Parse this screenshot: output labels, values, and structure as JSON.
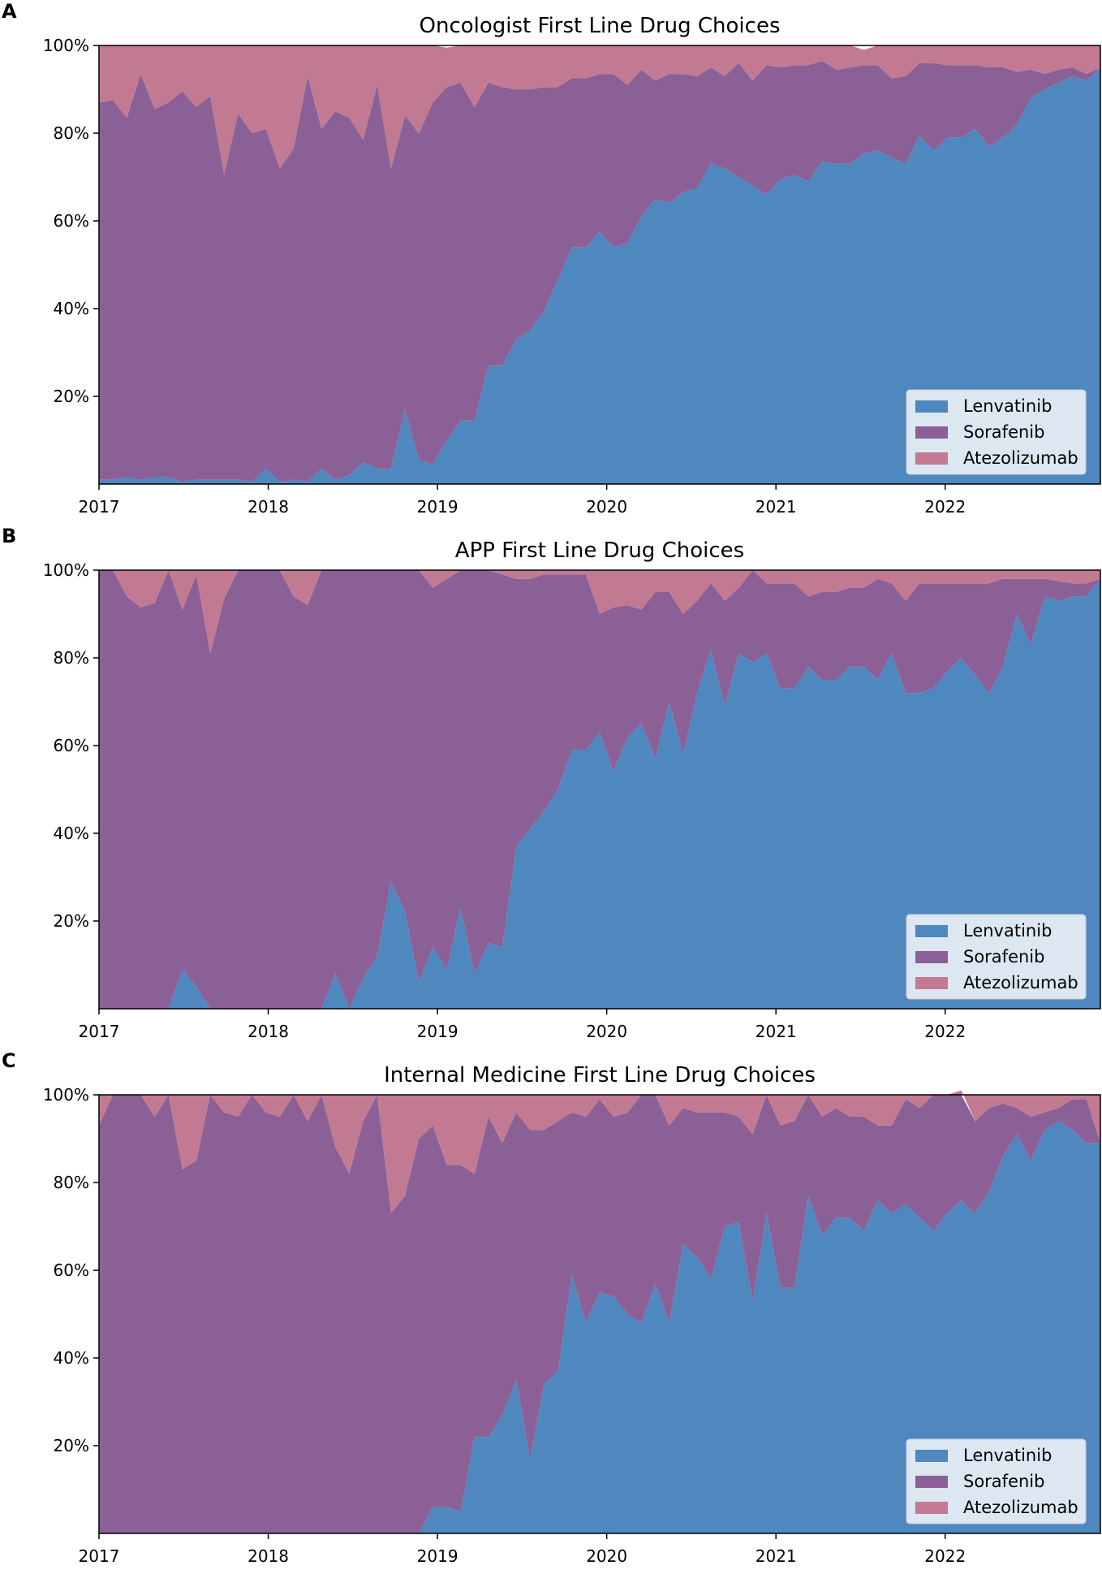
{
  "figure": {
    "colors": {
      "Lenvatinib": "#4f87bf",
      "Sorafenib": "#8b6097",
      "Atezolizumab": "#c27a92"
    },
    "legend_position": "lower-right"
  },
  "chart_data": [
    {
      "type": "area",
      "stacked": true,
      "panel_letter": "A",
      "title": "Oncologist First Line Drug Choices",
      "xlabel": "",
      "ylabel": "",
      "x_ticks": [
        "2017",
        "2018",
        "2019",
        "2020",
        "2021",
        "2022"
      ],
      "y_ticks": [
        "20%",
        "40%",
        "60%",
        "80%",
        "100%"
      ],
      "ylim": [
        0,
        100
      ],
      "x_start": 2017.0,
      "x_end": 2022.917,
      "legend": [
        "Lenvatinib",
        "Sorafenib",
        "Atezolizumab"
      ],
      "series": [
        {
          "name": "Lenvatinib",
          "values": [
            1,
            1,
            1.5,
            1,
            1.5,
            1.5,
            0.5,
            1,
            1,
            1,
            1,
            0.5,
            3.5,
            0.5,
            1,
            0.5,
            3.5,
            1,
            2,
            5,
            3.5,
            3.5,
            17,
            5.5,
            4.5,
            10,
            14.5,
            14.5,
            27,
            27,
            33,
            35,
            39.5,
            46.5,
            54,
            54,
            57.5,
            54,
            55,
            61,
            65,
            64,
            66.5,
            67.5,
            73,
            72,
            70,
            68,
            66,
            69.5,
            70.5,
            69,
            73.5,
            73,
            73,
            75.5,
            76,
            74.5,
            73,
            79.5,
            76,
            79,
            79,
            81,
            77,
            79,
            82,
            88,
            90,
            91.5,
            93,
            92,
            95
          ]
        },
        {
          "name": "Sorafenib",
          "values": [
            86,
            86.5,
            82,
            92.5,
            84,
            85.5,
            89,
            85,
            87.5,
            69.5,
            83.5,
            79.5,
            77.5,
            71.5,
            75.5,
            92.5,
            77.5,
            84,
            81.5,
            73.5,
            87.5,
            68.5,
            67,
            74.5,
            82.5,
            80.5,
            77,
            71.5,
            64.5,
            63.5,
            57,
            55,
            51,
            44,
            38.5,
            38.5,
            36,
            39.5,
            36,
            33.5,
            27,
            29.5,
            27,
            25.5,
            22,
            21,
            26,
            24,
            29.5,
            25.5,
            25,
            26.5,
            23,
            21.5,
            22,
            20,
            19.5,
            18,
            20,
            16.5,
            20,
            16.5,
            16.5,
            14.5,
            18,
            16,
            12,
            6.5,
            3.5,
            3,
            2,
            1.5,
            0
          ]
        },
        {
          "name": "Atezolizumab",
          "values": [
            13,
            12.5,
            16.5,
            6.5,
            14.5,
            13,
            10.5,
            14,
            11.5,
            29.5,
            15.5,
            20,
            19,
            28,
            23.5,
            7,
            19,
            15,
            16.5,
            21.5,
            9,
            28,
            16,
            20,
            13,
            9,
            8.5,
            14,
            8.5,
            9.5,
            10,
            10,
            9.5,
            9.5,
            7.5,
            7.5,
            6.5,
            6.5,
            9,
            5.5,
            8,
            6.5,
            6.5,
            7,
            5,
            7,
            4,
            8,
            4.5,
            5,
            4.5,
            4.5,
            3.5,
            5.5,
            5,
            3.5,
            4.5,
            7.5,
            7,
            4,
            4,
            4.5,
            4.5,
            4.5,
            5,
            5,
            6,
            5.5,
            6.5,
            6,
            5,
            6.5,
            5
          ]
        }
      ]
    },
    {
      "type": "area",
      "stacked": true,
      "panel_letter": "B",
      "title": "APP First Line Drug Choices",
      "xlabel": "",
      "ylabel": "",
      "x_ticks": [
        "2017",
        "2018",
        "2019",
        "2020",
        "2021",
        "2022"
      ],
      "y_ticks": [
        "20%",
        "40%",
        "60%",
        "80%",
        "100%"
      ],
      "ylim": [
        0,
        100
      ],
      "x_start": 2017.0,
      "x_end": 2022.917,
      "legend": [
        "Lenvatinib",
        "Sorafenib",
        "Atezolizumab"
      ],
      "series": [
        {
          "name": "Lenvatinib",
          "values": [
            0,
            0,
            0,
            0,
            0,
            0,
            9,
            5,
            0,
            0,
            0,
            0,
            0,
            0,
            0,
            0,
            0,
            8,
            0,
            7,
            12,
            29,
            22,
            6,
            14,
            9,
            23,
            8,
            15,
            14,
            37,
            41,
            45,
            50,
            59,
            59,
            63,
            54,
            62,
            65,
            57,
            70,
            58,
            72,
            82,
            69,
            81,
            79,
            81,
            73,
            73,
            78,
            75,
            75,
            78,
            78,
            75,
            81,
            72,
            72,
            73,
            77,
            80,
            76,
            72,
            78,
            90,
            83,
            94,
            93,
            94,
            94,
            98
          ]
        },
        {
          "name": "Sorafenib",
          "values": [
            100,
            100,
            94,
            91.5,
            92.5,
            100,
            82,
            94,
            81,
            93.5,
            100,
            100,
            100,
            100,
            94,
            92,
            100,
            92,
            100,
            93,
            88,
            71,
            78,
            94,
            82,
            89,
            77,
            92,
            85,
            85,
            61,
            57,
            54,
            49,
            40,
            40,
            27,
            37.5,
            30,
            26,
            38,
            25,
            32,
            21,
            15,
            24,
            15,
            21,
            16,
            24,
            24,
            16,
            20,
            20,
            18,
            18,
            23,
            16,
            21,
            25,
            24,
            20,
            17,
            21,
            25,
            20,
            8,
            15,
            4,
            4.5,
            3,
            3,
            0
          ]
        },
        {
          "name": "Atezolizumab",
          "values": [
            0,
            0,
            6,
            8.5,
            7.5,
            0,
            9,
            1,
            19,
            6.5,
            0,
            0,
            0,
            0,
            6,
            8,
            0,
            0,
            0,
            0,
            0,
            0,
            0,
            0,
            4,
            2,
            0,
            0,
            0,
            1,
            2,
            2,
            1,
            1,
            1,
            1,
            10,
            8.5,
            8,
            9,
            5,
            5,
            10,
            7,
            3,
            7,
            4,
            0,
            3,
            3,
            3,
            6,
            5,
            5,
            4,
            4,
            2,
            3,
            7,
            3,
            3,
            3,
            3,
            3,
            3,
            2,
            2,
            2,
            2,
            2.5,
            3,
            3,
            2
          ]
        }
      ]
    },
    {
      "type": "area",
      "stacked": true,
      "panel_letter": "C",
      "title": "Internal Medicine First Line Drug Choices",
      "xlabel": "",
      "ylabel": "",
      "x_ticks": [
        "2017",
        "2018",
        "2019",
        "2020",
        "2021",
        "2022"
      ],
      "y_ticks": [
        "20%",
        "40%",
        "60%",
        "80%",
        "100%"
      ],
      "ylim": [
        0,
        100
      ],
      "x_start": 2017.0,
      "x_end": 2022.917,
      "legend": [
        "Lenvatinib",
        "Sorafenib",
        "Atezolizumab"
      ],
      "series": [
        {
          "name": "Lenvatinib",
          "values": [
            0,
            0,
            0,
            0,
            0,
            0,
            0,
            0,
            0,
            0,
            0,
            0,
            0,
            0,
            0,
            0,
            0,
            0,
            0,
            0,
            0,
            0,
            0,
            0,
            6,
            6,
            5,
            22,
            22,
            27,
            35,
            17,
            34,
            37,
            59,
            48,
            55,
            54,
            50,
            48,
            57,
            48,
            66,
            63,
            58,
            70,
            71,
            53,
            73,
            56,
            56,
            77,
            68,
            72,
            72,
            69,
            76,
            73,
            75,
            72,
            69,
            73,
            76,
            73,
            78,
            86,
            91,
            85,
            92,
            94,
            92,
            89,
            89
          ]
        },
        {
          "name": "Sorafenib",
          "values": [
            93,
            100,
            100,
            100,
            95,
            100,
            83,
            85,
            100,
            96,
            95,
            100,
            96,
            95,
            100,
            94,
            100,
            88,
            82,
            94,
            100,
            73,
            77,
            90,
            87,
            78,
            79,
            60,
            73,
            62,
            61,
            75,
            58,
            57,
            37,
            47,
            44,
            41,
            46,
            52,
            43,
            45,
            31,
            33,
            38,
            26,
            24,
            38,
            27,
            37,
            38,
            23,
            27,
            25,
            23,
            26,
            17,
            20,
            24,
            25,
            31,
            27,
            25,
            21,
            19,
            12,
            6,
            10,
            4,
            3,
            7,
            10,
            0
          ]
        },
        {
          "name": "Atezolizumab",
          "values": [
            7,
            0,
            0,
            0,
            5,
            0,
            17,
            15,
            0,
            4,
            5,
            0,
            4,
            5,
            0,
            6,
            0,
            12,
            18,
            6,
            0,
            27,
            23,
            10,
            7,
            16,
            16,
            18,
            5,
            11,
            4,
            8,
            8,
            6,
            4,
            5,
            1,
            5,
            4,
            0,
            0,
            7,
            3,
            4,
            4,
            4,
            5,
            9,
            0,
            7,
            6,
            0,
            5,
            3,
            5,
            5,
            7,
            7,
            1,
            3,
            0,
            0,
            0,
            6,
            3,
            2,
            3,
            5,
            4,
            3,
            1,
            1,
            11
          ]
        }
      ]
    }
  ]
}
